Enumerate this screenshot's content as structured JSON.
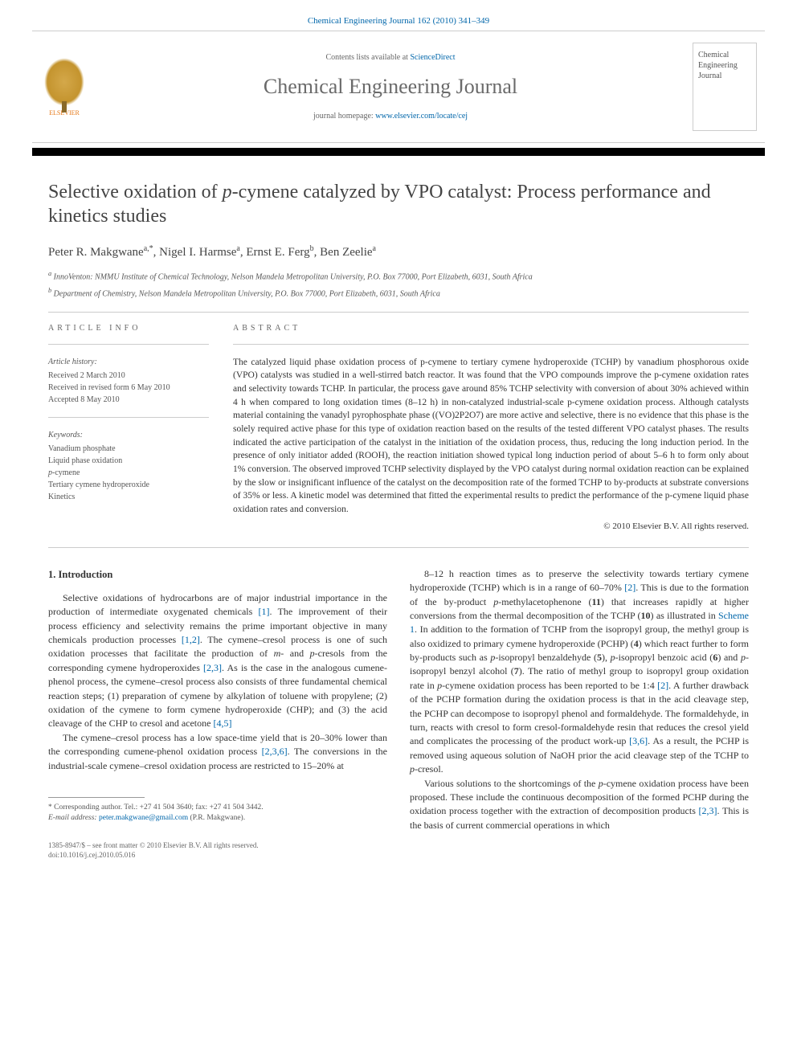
{
  "header": {
    "citation": "Chemical Engineering Journal 162 (2010) 341–349",
    "contents_prefix": "Contents lists available at ",
    "contents_link_text": "ScienceDirect",
    "journal_title": "Chemical Engineering Journal",
    "homepage_prefix": "journal homepage: ",
    "homepage_url": "www.elsevier.com/locate/cej",
    "publisher": "ELSEVIER",
    "cover_text": "Chemical Engineering Journal"
  },
  "paper": {
    "title_pre": "Selective oxidation of ",
    "title_ital": "p",
    "title_post": "-cymene catalyzed by VPO catalyst: Process performance and kinetics studies",
    "authors_html": "Peter R. Makgwane|a,*|, Nigel I. Harmse|a|, Ernst E. Ferg|b|, Ben Zeelie|a|",
    "authors": [
      {
        "name": "Peter R. Makgwane",
        "sup": "a,*"
      },
      {
        "name": "Nigel I. Harmse",
        "sup": "a"
      },
      {
        "name": "Ernst E. Ferg",
        "sup": "b"
      },
      {
        "name": "Ben Zeelie",
        "sup": "a"
      }
    ],
    "affiliations": [
      {
        "label": "a",
        "text": "InnoVenton: NMMU Institute of Chemical Technology, Nelson Mandela Metropolitan University, P.O. Box 77000, Port Elizabeth, 6031, South Africa"
      },
      {
        "label": "b",
        "text": "Department of Chemistry, Nelson Mandela Metropolitan University, P.O. Box 77000, Port Elizabeth, 6031, South Africa"
      }
    ]
  },
  "article_info": {
    "heading": "article info",
    "history_label": "Article history:",
    "history": [
      "Received 2 March 2010",
      "Received in revised form 6 May 2010",
      "Accepted 8 May 2010"
    ],
    "keywords_label": "Keywords:",
    "keywords": [
      "Vanadium phosphate",
      "Liquid phase oxidation",
      "p-cymene",
      "Tertiary cymene hydroperoxide",
      "Kinetics"
    ]
  },
  "abstract": {
    "heading": "abstract",
    "text": "The catalyzed liquid phase oxidation process of p-cymene to tertiary cymene hydroperoxide (TCHP) by vanadium phosphorous oxide (VPO) catalysts was studied in a well-stirred batch reactor. It was found that the VPO compounds improve the p-cymene oxidation rates and selectivity towards TCHP. In particular, the process gave around 85% TCHP selectivity with conversion of about 30% achieved within 4 h when compared to long oxidation times (8–12 h) in non-catalyzed industrial-scale p-cymene oxidation process. Although catalysts material containing the vanadyl pyrophosphate phase ((VO)2P2O7) are more active and selective, there is no evidence that this phase is the solely required active phase for this type of oxidation reaction based on the results of the tested different VPO catalyst phases. The results indicated the active participation of the catalyst in the initiation of the oxidation process, thus, reducing the long induction period. In the presence of only initiator added (ROOH), the reaction initiation showed typical long induction period of about 5–6 h to form only about 1% conversion. The observed improved TCHP selectivity displayed by the VPO catalyst during normal oxidation reaction can be explained by the slow or insignificant influence of the catalyst on the decomposition rate of the formed TCHP to by-products at substrate conversions of 35% or less. A kinetic model was determined that fitted the experimental results to predict the performance of the p-cymene liquid phase oxidation rates and conversion.",
    "copyright": "© 2010 Elsevier B.V. All rights reserved."
  },
  "body": {
    "section_num": "1.",
    "section_title": "Introduction",
    "p1": "Selective oxidations of hydrocarbons are of major industrial importance in the production of intermediate oxygenated chemicals [1]. The improvement of their process efficiency and selectivity remains the prime important objective in many chemicals production processes [1,2]. The cymene–cresol process is one of such oxidation processes that facilitate the production of m- and p-cresols from the corresponding cymene hydroperoxides [2,3]. As is the case in the analogous cumene-phenol process, the cymene–cresol process also consists of three fundamental chemical reaction steps; (1) preparation of cymene by alkylation of toluene with propylene; (2) oxidation of the cymene to form cymene hydroperoxide (CHP); and (3) the acid cleavage of the CHP to cresol and acetone [4,5]",
    "p2": "The cymene–cresol process has a low space-time yield that is 20–30% lower than the corresponding cumene-phenol oxidation process [2,3,6]. The conversions in the industrial-scale cymene–cresol oxidation process are restricted to 15–20% at",
    "p3": "8–12 h reaction times as to preserve the selectivity towards tertiary cymene hydroperoxide (TCHP) which is in a range of 60–70% [2]. This is due to the formation of the by-product p-methylacetophenone (11) that increases rapidly at higher conversions from the thermal decomposition of the TCHP (10) as illustrated in Scheme 1. In addition to the formation of TCHP from the isopropyl group, the methyl group is also oxidized to primary cymene hydroperoxide (PCHP) (4) which react further to form by-products such as p-isopropyl benzaldehyde (5), p-isopropyl benzoic acid (6) and p-isopropyl benzyl alcohol (7). The ratio of methyl group to isopropyl group oxidation rate in p-cymene oxidation process has been reported to be 1:4 [2]. A further drawback of the PCHP formation during the oxidation process is that in the acid cleavage step, the PCHP can decompose to isopropyl phenol and formaldehyde. The formaldehyde, in turn, reacts with cresol to form cresol-formaldehyde resin that reduces the cresol yield and complicates the processing of the product work-up [3,6]. As a result, the PCHP is removed using aqueous solution of NaOH prior the acid cleavage step of the TCHP to p-cresol.",
    "p4": "Various solutions to the shortcomings of the p-cymene oxidation process have been proposed. These include the continuous decomposition of the formed PCHP during the oxidation process together with the extraction of decomposition products [2,3]. This is the basis of current commercial operations in which",
    "refs": {
      "r1": "[1]",
      "r12": "[1,2]",
      "r23": "[2,3]",
      "r45": "[4,5]",
      "r236": "[2,3,6]",
      "r2": "[2]",
      "r36": "[3,6]",
      "scheme1": "Scheme 1"
    }
  },
  "footnote": {
    "corr_label": "* Corresponding author. Tel.: +27 41 504 3640; fax: +27 41 504 3442.",
    "email_label": "E-mail address: ",
    "email": "peter.makgwane@gmail.com",
    "email_suffix": " (P.R. Makgwane)."
  },
  "bottom": {
    "line1": "1385-8947/$ – see front matter © 2010 Elsevier B.V. All rights reserved.",
    "line2": "doi:10.1016/j.cej.2010.05.016"
  },
  "colors": {
    "link": "#0066aa",
    "text": "#333333",
    "muted": "#666666",
    "rule": "#cccccc",
    "elsevier_orange": "#e67817"
  }
}
